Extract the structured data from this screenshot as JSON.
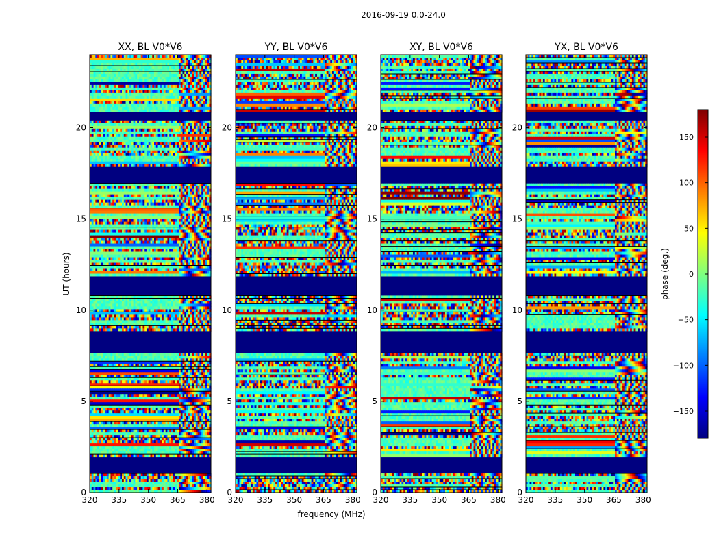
{
  "figure": {
    "suptitle": "2016-09-19 0.0-24.0"
  },
  "colormap": {
    "name": "jet",
    "stops": [
      "#00007f",
      "#0000ff",
      "#007fff",
      "#00ffff",
      "#7fff7f",
      "#ffff00",
      "#ff7f00",
      "#ff0000",
      "#7f0000"
    ]
  },
  "chart_data": {
    "type": "heatmap",
    "xlabel": "frequency (MHz)",
    "ylabel": "UT (hours)",
    "xlim": [
      320,
      382
    ],
    "ylim": [
      0,
      24
    ],
    "xticks": [
      320,
      335,
      350,
      365,
      380
    ],
    "yticks": [
      0,
      5,
      10,
      15,
      20
    ],
    "value_label": "phase (deg.)",
    "value_range": [
      -180,
      180
    ],
    "colorbar_ticks": [
      150,
      100,
      50,
      0,
      -50,
      -100,
      -150
    ],
    "colorbar_tick_labels": [
      "150",
      "100",
      "50",
      "0",
      "−50",
      "−100",
      "−150"
    ],
    "colorbar_bottom_note": ". . . . .",
    "panels": [
      {
        "title": "XX, BL V0*V6",
        "polarization": "XX"
      },
      {
        "title": "YY, BL V0*V6",
        "polarization": "YY"
      },
      {
        "title": "XY, BL V0*V6",
        "polarization": "XY"
      },
      {
        "title": "YX, BL V0*V6",
        "polarization": "YX"
      }
    ],
    "flagged_ut_ranges": [
      [
        1.1,
        2.0
      ],
      [
        7.6,
        8.8
      ],
      [
        10.8,
        11.9
      ],
      [
        16.9,
        17.9
      ],
      [
        20.4,
        20.8
      ]
    ],
    "flag_value": -180
  }
}
